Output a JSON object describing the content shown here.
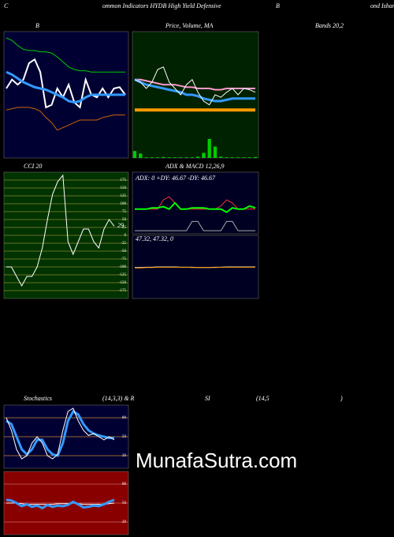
{
  "header": [
    "C",
    "ommon Indicators HYDB High Yield Defensive",
    "B",
    "ond Ishare"
  ],
  "watermark": "MunafaSutra.com",
  "chart_data": [
    {
      "type": "line",
      "title": "B",
      "subtitle": "Bands 20,2",
      "ylim": [
        0,
        100
      ],
      "series": [
        {
          "color": "#00cc00",
          "width": 1,
          "values": [
            95,
            93,
            89,
            86,
            85,
            85,
            84,
            84,
            83,
            80,
            76,
            72,
            70,
            69,
            69,
            68,
            68,
            68,
            68,
            68,
            68,
            68
          ]
        },
        {
          "color": "#ffffff",
          "width": 2,
          "values": [
            55,
            62,
            58,
            62,
            75,
            78,
            68,
            40,
            42,
            55,
            48,
            58,
            44,
            40,
            62,
            50,
            48,
            55,
            48,
            55,
            56,
            50
          ]
        },
        {
          "color": "#3399ff",
          "width": 3,
          "values": [
            68,
            66,
            63,
            60,
            58,
            56,
            55,
            54,
            52,
            50,
            48,
            45,
            44,
            45,
            48,
            50,
            50,
            50,
            50,
            50,
            50,
            50
          ]
        },
        {
          "color": "#cc6600",
          "width": 1,
          "values": [
            38,
            39,
            40,
            40,
            40,
            39,
            37,
            32,
            28,
            22,
            24,
            26,
            28,
            30,
            30,
            30,
            30,
            32,
            33,
            34,
            34,
            34
          ]
        }
      ]
    },
    {
      "type": "line",
      "title": "Price,  Volume, MA",
      "ylim": [
        0,
        100
      ],
      "series": [
        {
          "color": "#ff99cc",
          "width": 2,
          "values": [
            62,
            62,
            61,
            60,
            59,
            58,
            58,
            58,
            57,
            56,
            56,
            55,
            55,
            55,
            54,
            54,
            55,
            55,
            55,
            55,
            55,
            55
          ]
        },
        {
          "color": "#3399ff",
          "width": 3,
          "values": [
            62,
            60,
            58,
            57,
            56,
            55,
            54,
            53,
            52,
            50,
            50,
            49,
            47,
            46,
            45,
            45,
            46,
            47,
            47,
            47,
            47,
            47
          ]
        },
        {
          "color": "#ffffff",
          "width": 1,
          "values": [
            62,
            60,
            55,
            60,
            70,
            72,
            60,
            55,
            50,
            58,
            62,
            52,
            45,
            42,
            50,
            48,
            52,
            55,
            50,
            55,
            54,
            52
          ]
        },
        {
          "color": "#ff9900",
          "width": 4,
          "values": [
            38,
            38,
            38,
            38,
            38,
            38,
            38,
            38,
            38,
            38,
            38,
            38,
            38,
            38,
            38,
            38,
            38,
            38,
            38,
            38,
            38,
            38
          ]
        }
      ],
      "volume": {
        "color": "#00cc00",
        "ylim": [
          0,
          100
        ],
        "values": [
          22,
          14,
          2,
          2,
          2,
          3,
          2,
          2,
          2,
          2,
          2,
          4,
          16,
          60,
          36,
          4,
          2,
          2,
          2,
          2,
          2,
          3
        ]
      }
    },
    {
      "type": "line",
      "title": "CCI 20",
      "ylim": [
        -200,
        200
      ],
      "grid": true,
      "grid_color": "#888833",
      "yticks": [
        175,
        150,
        125,
        100,
        75,
        50,
        25,
        0,
        -25,
        -50,
        -75,
        -100,
        -125,
        -150,
        -175
      ],
      "last_label": true,
      "series": [
        {
          "color": "#ffffff",
          "width": 1,
          "values": [
            -100,
            -100,
            -130,
            -160,
            -130,
            -130,
            -100,
            -40,
            50,
            130,
            170,
            190,
            -20,
            -60,
            -20,
            20,
            20,
            -20,
            -40,
            20,
            50,
            29
          ]
        }
      ]
    },
    {
      "type": "line",
      "title": "ADX  & MACD 12,26,9",
      "annotation": "ADX: 0  +DY: 46.67 -DY: 46.67",
      "ylim": [
        0,
        100
      ],
      "series": [
        {
          "color": "#ff3333",
          "width": 1,
          "values": [
            40,
            40,
            40,
            40,
            40,
            55,
            60,
            50,
            40,
            40,
            40,
            40,
            40,
            40,
            40,
            45,
            55,
            50,
            40,
            40,
            40,
            40
          ]
        },
        {
          "color": "#00ff00",
          "width": 2,
          "values": [
            40,
            40,
            40,
            42,
            42,
            44,
            40,
            50,
            40,
            40,
            42,
            42,
            42,
            40,
            40,
            40,
            35,
            42,
            40,
            40,
            45,
            42
          ]
        },
        {
          "color": "#aaaaaa",
          "width": 1,
          "values": [
            5,
            5,
            5,
            5,
            5,
            5,
            5,
            5,
            5,
            5,
            20,
            20,
            5,
            5,
            5,
            5,
            20,
            20,
            5,
            5,
            5,
            5
          ]
        }
      ]
    },
    {
      "type": "line",
      "annotation": "47.32, 47.32, 0",
      "ylim": [
        -100,
        100
      ],
      "series": [
        {
          "color": "#ffffff",
          "width": 1,
          "values": [
            -2,
            -2,
            -1,
            -1,
            0,
            0,
            0,
            0,
            -1,
            -1,
            -1,
            -2,
            -2,
            -2,
            -1,
            -1,
            0,
            0,
            0,
            0,
            0,
            0
          ]
        },
        {
          "color": "#ff9900",
          "width": 1,
          "values": [
            -3,
            -3,
            -2,
            -2,
            -1,
            -1,
            -1,
            -1,
            -1,
            -1,
            -2,
            -2,
            -2,
            -2,
            -2,
            -1,
            -1,
            -1,
            -1,
            -1,
            -1,
            -1
          ]
        }
      ]
    },
    {
      "type": "line",
      "title": "Stochastics",
      "subtitle": "(14,3,3) & R",
      "ylim": [
        0,
        100
      ],
      "grid": true,
      "grid_color": "#cc8833",
      "yticks": [
        80,
        50,
        20
      ],
      "series": [
        {
          "color": "#3399ff",
          "width": 3,
          "values": [
            75,
            70,
            50,
            30,
            22,
            30,
            45,
            45,
            30,
            22,
            20,
            40,
            75,
            90,
            85,
            70,
            60,
            55,
            52,
            50,
            48,
            48
          ]
        },
        {
          "color": "#ffffff",
          "width": 1,
          "values": [
            80,
            60,
            30,
            15,
            20,
            40,
            50,
            40,
            20,
            15,
            22,
            60,
            90,
            95,
            75,
            60,
            52,
            55,
            50,
            45,
            50,
            45
          ]
        }
      ]
    },
    {
      "type": "line",
      "title": "SI",
      "subtitle": "(14,5",
      "note": ")",
      "ylim": [
        0,
        100
      ],
      "grid": true,
      "grid_color": "#cc6666",
      "yticks": [
        80,
        50,
        20
      ],
      "series": [
        {
          "color": "#ffffff",
          "width": 1,
          "values": [
            50,
            50,
            50,
            49,
            48,
            48,
            48,
            48,
            48,
            48,
            49,
            49,
            49,
            50,
            49,
            48,
            48,
            48,
            48,
            48,
            49,
            50
          ]
        },
        {
          "color": "#3399ff",
          "width": 3,
          "values": [
            55,
            54,
            50,
            45,
            48,
            44,
            46,
            42,
            47,
            44,
            46,
            45,
            47,
            52,
            48,
            43,
            44,
            46,
            45,
            48,
            52,
            55
          ]
        }
      ]
    }
  ]
}
